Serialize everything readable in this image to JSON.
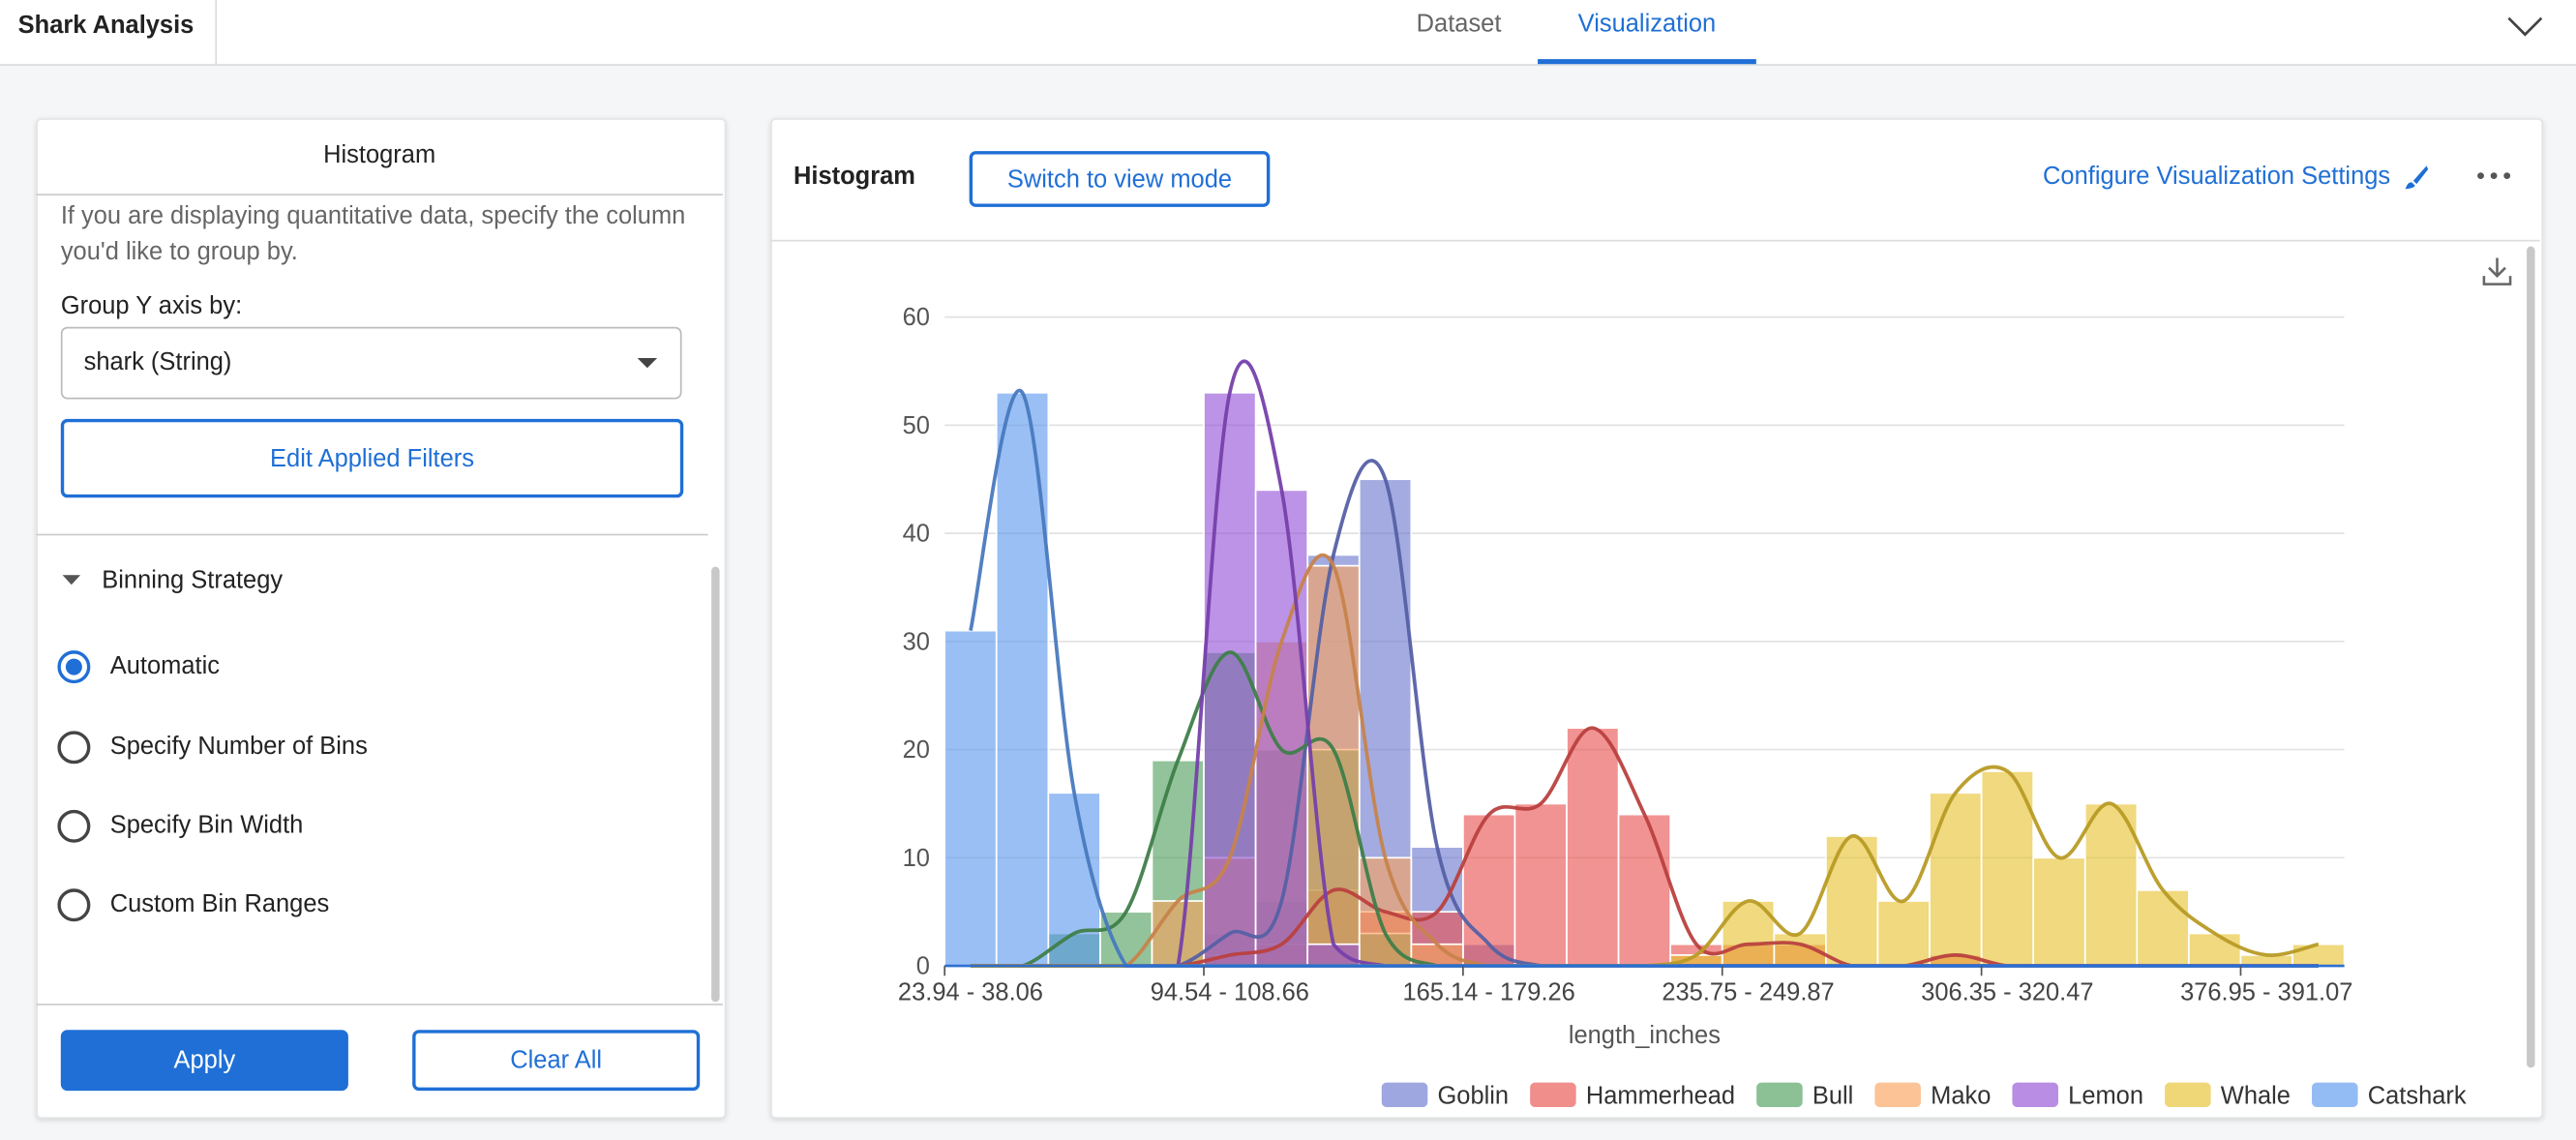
{
  "header": {
    "title": "Shark Analysis",
    "tabs": [
      "Dataset",
      "Visualization"
    ]
  },
  "sidebar": {
    "title": "Histogram",
    "description": "If you are displaying quantitative data, specify the column you'd like to group by.",
    "group_label": "Group Y axis by:",
    "group_value": "shark (String)",
    "filters_button": "Edit Applied Filters",
    "section": "Binning Strategy",
    "options": [
      "Automatic",
      "Specify Number of Bins",
      "Specify Bin Width",
      "Custom Bin Ranges"
    ],
    "apply": "Apply",
    "clear": "Clear All"
  },
  "panel": {
    "title": "Histogram",
    "mode_button": "Switch to view mode",
    "configure": "Configure Visualization Settings"
  },
  "chart_data": {
    "type": "histogram",
    "xlabel": "length_inches",
    "categories": [
      "23.94 - 38.06",
      null,
      null,
      null,
      null,
      "94.54 - 108.66",
      null,
      null,
      null,
      null,
      "165.14 - 179.26",
      null,
      null,
      null,
      null,
      "235.75 - 249.87",
      null,
      null,
      null,
      null,
      "306.35 - 320.47",
      null,
      null,
      null,
      null,
      "376.95 - 391.07",
      null
    ],
    "ylim": [
      0,
      60
    ],
    "yticks": [
      0,
      10,
      20,
      30,
      40,
      50,
      60
    ],
    "grid": true,
    "series": [
      {
        "name": "Goblin",
        "color": "#6b78cf",
        "values": [
          0,
          0,
          0,
          0,
          0,
          3,
          6,
          38,
          45,
          11,
          2,
          0,
          0,
          0,
          0,
          0,
          0,
          0,
          0,
          0,
          0,
          0,
          0,
          0,
          0,
          0,
          0
        ]
      },
      {
        "name": "Hammerhead",
        "color": "#e8514f",
        "values": [
          0,
          0,
          0,
          0,
          0,
          1,
          2,
          7,
          5,
          5,
          14,
          15,
          22,
          14,
          2,
          2,
          2,
          0,
          0,
          1,
          0,
          0,
          0,
          0,
          0,
          0,
          0
        ]
      },
      {
        "name": "Bull",
        "color": "#4f9e5c",
        "values": [
          0,
          0,
          3,
          5,
          19,
          29,
          20,
          20,
          3,
          0,
          0,
          0,
          0,
          0,
          0,
          0,
          0,
          0,
          0,
          0,
          0,
          0,
          0,
          0,
          0,
          0,
          0
        ]
      },
      {
        "name": "Mako",
        "color": "#f9a35e",
        "values": [
          0,
          0,
          0,
          0,
          6,
          10,
          30,
          37,
          10,
          2,
          0,
          0,
          0,
          0,
          0,
          0,
          0,
          0,
          0,
          0,
          0,
          0,
          0,
          0,
          0,
          0,
          0
        ]
      },
      {
        "name": "Lemon",
        "color": "#9350d6",
        "values": [
          0,
          0,
          0,
          0,
          0,
          53,
          44,
          2,
          0,
          0,
          0,
          0,
          0,
          0,
          0,
          0,
          0,
          0,
          0,
          0,
          0,
          0,
          0,
          0,
          0,
          0,
          0
        ]
      },
      {
        "name": "Whale",
        "color": "#e7c22e",
        "values": [
          0,
          0,
          0,
          0,
          0,
          0,
          0,
          0,
          0,
          0,
          0,
          0,
          0,
          0,
          1,
          6,
          3,
          12,
          6,
          16,
          18,
          10,
          15,
          7,
          3,
          1,
          2
        ]
      },
      {
        "name": "Catshark",
        "color": "#5b98ee",
        "values": [
          31,
          53,
          16,
          0,
          0,
          0,
          0,
          0,
          0,
          0,
          0,
          0,
          0,
          0,
          0,
          0,
          0,
          0,
          0,
          0,
          0,
          0,
          0,
          0,
          0,
          0,
          0
        ]
      }
    ]
  }
}
